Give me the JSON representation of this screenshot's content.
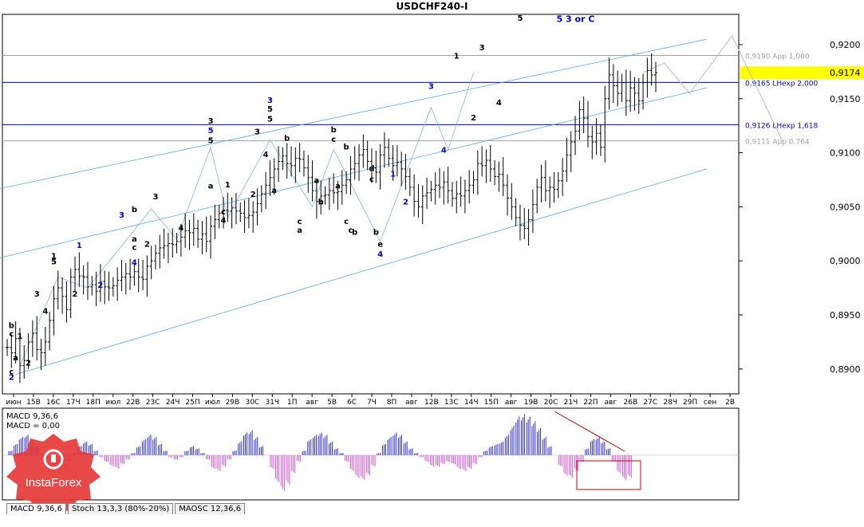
{
  "title": "USDCHF240-I",
  "logo_text": "InstaForex",
  "price_axis": {
    "ticks": [
      "0,9200",
      "0,9150",
      "0,9100",
      "0,9050",
      "0,9000",
      "0,8950",
      "0,8900"
    ],
    "tick_values": [
      0.92,
      0.915,
      0.91,
      0.905,
      0.9,
      0.895,
      0.89
    ],
    "current": "0,9174",
    "current_value": 0.9174,
    "ylim": [
      0.8877,
      0.9228
    ]
  },
  "time_axis": {
    "labels": [
      "июн",
      "15В",
      "16С",
      "17Ч",
      "18П",
      "июл",
      "22В",
      "23С",
      "24Ч",
      "25П",
      "июл",
      "29В",
      "30С",
      "31Ч",
      "1П",
      "авг",
      "5В",
      "6С",
      "7Ч",
      "8П",
      "авг",
      "12В",
      "13С",
      "14Ч",
      "15П",
      "авг",
      "19В",
      "20С",
      "21Ч",
      "22П",
      "авг",
      "26В",
      "27С",
      "28Ч",
      "29П",
      "сен",
      "2В"
    ]
  },
  "levels": [
    {
      "label": "0,9190 App 1,000",
      "value": 0.919,
      "color": "#a0a0a0"
    },
    {
      "label": "0,9165 LHexp 2,000",
      "value": 0.9165,
      "color": "#0000c0"
    },
    {
      "label": "0,9126 LHexp 1,618",
      "value": 0.9126,
      "color": "#0000c0"
    },
    {
      "label": "0,9111 App 0,764",
      "value": 0.9111,
      "color": "#a0a0a0"
    }
  ],
  "accent": {
    "blue": "#0000cc",
    "channel": "#5ba8d8",
    "wave": "#80b8d8",
    "bars": "#000000",
    "macd_pos": "#3232d6",
    "macd_neg": "#d25ad2",
    "red": "#cc0000"
  },
  "wave_labels": [
    {
      "t": "b",
      "c": "#000",
      "bi": 1,
      "p": 0.8938
    },
    {
      "t": "c",
      "c": "#000",
      "bi": 1,
      "p": 0.893
    },
    {
      "t": "1",
      "c": "#000",
      "bi": 3,
      "p": 0.8928
    },
    {
      "t": "a",
      "c": "#000",
      "bi": 2,
      "p": 0.8908
    },
    {
      "t": "2",
      "c": "#000",
      "bi": 5,
      "p": 0.8903
    },
    {
      "t": "c",
      "c": "#000",
      "bi": 1,
      "p": 0.8895
    },
    {
      "t": "2",
      "c": "#00c",
      "bi": 1,
      "p": 0.889
    },
    {
      "t": "3",
      "c": "#000",
      "bi": 7,
      "p": 0.8967
    },
    {
      "t": "4",
      "c": "#000",
      "bi": 9,
      "p": 0.8951
    },
    {
      "t": "1",
      "c": "#000",
      "bi": 11,
      "p": 0.9002
    },
    {
      "t": "5",
      "c": "#000",
      "bi": 11,
      "p": 0.8997
    },
    {
      "t": "2",
      "c": "#000",
      "bi": 16,
      "p": 0.8967
    },
    {
      "t": "1",
      "c": "#00c",
      "bi": 17,
      "p": 0.9012
    },
    {
      "t": "2",
      "c": "#00c",
      "bi": 22,
      "p": 0.8975
    },
    {
      "t": "3",
      "c": "#00c",
      "bi": 27,
      "p": 0.904
    },
    {
      "t": "b",
      "c": "#000",
      "bi": 30,
      "p": 0.9045
    },
    {
      "t": "a",
      "c": "#000",
      "bi": 30,
      "p": 0.9018
    },
    {
      "t": "c",
      "c": "#000",
      "bi": 30,
      "p": 0.901
    },
    {
      "t": "4",
      "c": "#00c",
      "bi": 30,
      "p": 0.8996
    },
    {
      "t": "2",
      "c": "#000",
      "bi": 33,
      "p": 0.9013
    },
    {
      "t": "3",
      "c": "#000",
      "bi": 35,
      "p": 0.9057
    },
    {
      "t": "4",
      "c": "#000",
      "bi": 41,
      "p": 0.9028
    },
    {
      "t": "3",
      "c": "#000",
      "bi": 48,
      "p": 0.9127
    },
    {
      "t": "5",
      "c": "#00c",
      "bi": 48,
      "p": 0.9118
    },
    {
      "t": "5",
      "c": "#000",
      "bi": 48,
      "p": 0.9109
    },
    {
      "t": "a",
      "c": "#000",
      "bi": 48,
      "p": 0.9067
    },
    {
      "t": "c",
      "c": "#000",
      "bi": 51,
      "p": 0.9043
    },
    {
      "t": "4",
      "c": "#000",
      "bi": 51,
      "p": 0.9035
    },
    {
      "t": "1",
      "c": "#000",
      "bi": 52,
      "p": 0.9068
    },
    {
      "t": "2",
      "c": "#000",
      "bi": 58,
      "p": 0.9059
    },
    {
      "t": "3",
      "c": "#000",
      "bi": 59,
      "p": 0.9117
    },
    {
      "t": "4",
      "c": "#000",
      "bi": 61,
      "p": 0.9096
    },
    {
      "t": "3",
      "c": "#00c",
      "bi": 62,
      "p": 0.9146
    },
    {
      "t": "5",
      "c": "#000",
      "bi": 62,
      "p": 0.9138
    },
    {
      "t": "5",
      "c": "#000",
      "bi": 62,
      "p": 0.9129
    },
    {
      "t": "a",
      "c": "#000",
      "bi": 63,
      "p": 0.9063
    },
    {
      "t": "b",
      "c": "#000",
      "bi": 66,
      "p": 0.9111
    },
    {
      "t": "c",
      "c": "#000",
      "bi": 69,
      "p": 0.9034
    },
    {
      "t": "a",
      "c": "#000",
      "bi": 69,
      "p": 0.9026
    },
    {
      "t": "a",
      "c": "#000",
      "bi": 73,
      "p": 0.9072
    },
    {
      "t": "b",
      "c": "#000",
      "bi": 74,
      "p": 0.9052
    },
    {
      "t": "b",
      "c": "#000",
      "bi": 77,
      "p": 0.9119
    },
    {
      "t": "c",
      "c": "#000",
      "bi": 77,
      "p": 0.911
    },
    {
      "t": "a",
      "c": "#000",
      "bi": 78,
      "p": 0.9067
    },
    {
      "t": "b",
      "c": "#000",
      "bi": 80,
      "p": 0.9103
    },
    {
      "t": "c",
      "c": "#000",
      "bi": 80,
      "p": 0.9034
    },
    {
      "t": "c",
      "c": "#000",
      "bi": 81,
      "p": 0.9026
    },
    {
      "t": "b",
      "c": "#000",
      "bi": 82,
      "p": 0.9024
    },
    {
      "t": "d",
      "c": "#000",
      "bi": 86,
      "p": 0.9083
    },
    {
      "t": "c",
      "c": "#000",
      "bi": 86,
      "p": 0.9073
    },
    {
      "t": "b",
      "c": "#000",
      "bi": 87,
      "p": 0.9024
    },
    {
      "t": "e",
      "c": "#000",
      "bi": 88,
      "p": 0.9013
    },
    {
      "t": "4",
      "c": "#00c",
      "bi": 88,
      "p": 0.9004
    },
    {
      "t": "1",
      "c": "#00c",
      "bi": 91,
      "p": 0.9078
    },
    {
      "t": "2",
      "c": "#00c",
      "bi": 94,
      "p": 0.9052
    },
    {
      "t": "3",
      "c": "#00c",
      "bi": 100,
      "p": 0.9159
    },
    {
      "t": "4",
      "c": "#00c",
      "bi": 103,
      "p": 0.91
    },
    {
      "t": "1",
      "c": "#000",
      "bi": 106,
      "p": 0.9187
    },
    {
      "t": "2",
      "c": "#000",
      "bi": 110,
      "p": 0.913
    },
    {
      "t": "3",
      "c": "#000",
      "bi": 112,
      "p": 0.9195
    },
    {
      "t": "4",
      "c": "#000",
      "bi": 116,
      "p": 0.9144
    },
    {
      "t": "5",
      "c": "#000",
      "bi": 121,
      "p": 0.9222
    }
  ],
  "wave5_label": {
    "t": "5 3 or C",
    "c": "#00c",
    "p": 0.9221
  },
  "macd": {
    "label1": "MACD 9,36,6",
    "label2": "MACD = 0,00",
    "values": [
      0.2,
      0.5,
      0.8,
      0.9,
      0.7,
      0.4,
      0.1,
      -0.2,
      -0.5,
      -0.7,
      -0.6,
      -0.3,
      0.1,
      0.4,
      0.6,
      0.5,
      0.2,
      -0.1,
      -0.3,
      -0.5,
      -0.6,
      -0.4,
      -0.2,
      0.1,
      0.4,
      0.7,
      0.9,
      0.8,
      0.5,
      0.2,
      -0.1,
      -0.2,
      -0.1,
      0.2,
      0.4,
      0.3,
      0.1,
      -0.2,
      -0.6,
      -0.7,
      -0.5,
      -0.2,
      0.2,
      0.6,
      1.0,
      1.1,
      0.8,
      0.4,
      0.0,
      -0.6,
      -1.2,
      -1.6,
      -1.3,
      -0.8,
      -0.3,
      0.2,
      0.7,
      0.9,
      1.0,
      0.9,
      0.6,
      0.3,
      0.1,
      -0.3,
      -0.7,
      -1.0,
      -1.1,
      -0.9,
      -0.5,
      0.1,
      0.5,
      0.8,
      1.0,
      0.9,
      0.6,
      0.3,
      0.1,
      -0.1,
      -0.3,
      -0.5,
      -0.5,
      -0.4,
      -0.3,
      -0.4,
      -0.6,
      -0.7,
      -0.6,
      -0.4,
      -0.1,
      0.2,
      0.4,
      0.5,
      0.6,
      0.9,
      1.3,
      1.7,
      1.8,
      1.7,
      1.5,
      1.2,
      0.8,
      0.4,
      0.0,
      -0.5,
      -0.9,
      -1.0,
      -0.7,
      -0.3,
      0.3,
      0.7,
      0.8,
      0.6,
      0.3,
      -0.3,
      -0.8,
      -1.1,
      -1.0
    ],
    "range": [
      -1.9,
      2.0
    ]
  },
  "tabs": [
    "MACD 9,36,6",
    "Stoch 13,3,3 (80%-20%)",
    "MAOSC 12,36,6"
  ],
  "chart_data": {
    "type": "line",
    "title": "USDCHF240-I",
    "xlabel": "",
    "ylabel": "",
    "ylim": [
      0.8877,
      0.9228
    ],
    "close_path": [
      0.892,
      0.8915,
      0.8928,
      0.8903,
      0.8908,
      0.8925,
      0.8933,
      0.8918,
      0.8915,
      0.8925,
      0.8945,
      0.8965,
      0.8975,
      0.8967,
      0.8955,
      0.8985,
      0.8992,
      0.8986,
      0.8985,
      0.8976,
      0.8978,
      0.8972,
      0.8981,
      0.8976,
      0.8975,
      0.8977,
      0.8982,
      0.8985,
      0.8988,
      0.8985,
      0.899,
      0.8985,
      0.8983,
      0.8995,
      0.9,
      0.9007,
      0.9012,
      0.9014,
      0.9016,
      0.9015,
      0.9018,
      0.9022,
      0.9028,
      0.9026,
      0.903,
      0.902,
      0.9025,
      0.9018,
      0.9032,
      0.9038,
      0.9044,
      0.9047,
      0.9046,
      0.9049,
      0.9046,
      0.9044,
      0.904,
      0.9042,
      0.9045,
      0.9053,
      0.9062,
      0.907,
      0.9077,
      0.9085,
      0.9092,
      0.9097,
      0.909,
      0.9088,
      0.9095,
      0.9094,
      0.9086,
      0.9077,
      0.9065,
      0.9055,
      0.906,
      0.9061,
      0.9065,
      0.9063,
      0.9064,
      0.907,
      0.9075,
      0.9085,
      0.909,
      0.9098,
      0.9103,
      0.9092,
      0.9086,
      0.9082,
      0.9098,
      0.9105,
      0.9095,
      0.9088,
      0.9091,
      0.9085,
      0.9078,
      0.9068,
      0.9055,
      0.905,
      0.906,
      0.9063,
      0.9066,
      0.907,
      0.9068,
      0.9073,
      0.9065,
      0.9058,
      0.9062,
      0.906,
      0.9065,
      0.907,
      0.9075,
      0.909,
      0.9088,
      0.9093,
      0.9085,
      0.9078,
      0.908,
      0.907,
      0.9058,
      0.905,
      0.904,
      0.9033,
      0.903,
      0.9038,
      0.9052,
      0.9068,
      0.9077,
      0.9065,
      0.9068,
      0.9066,
      0.9074,
      0.9083,
      0.9098,
      0.911,
      0.912,
      0.914,
      0.9132,
      0.9115,
      0.911,
      0.9118,
      0.9105,
      0.915,
      0.9172,
      0.9162,
      0.9155,
      0.9165,
      0.9148,
      0.916,
      0.9155,
      0.9148,
      0.9165,
      0.9176,
      0.9172,
      0.9174
    ],
    "projection": [
      {
        "i": 150,
        "p": 0.9174
      },
      {
        "i": 155,
        "p": 0.9183
      },
      {
        "i": 161,
        "p": 0.9155
      },
      {
        "i": 171,
        "p": 0.9208
      },
      {
        "i": 183,
        "p": 0.911
      }
    ]
  }
}
